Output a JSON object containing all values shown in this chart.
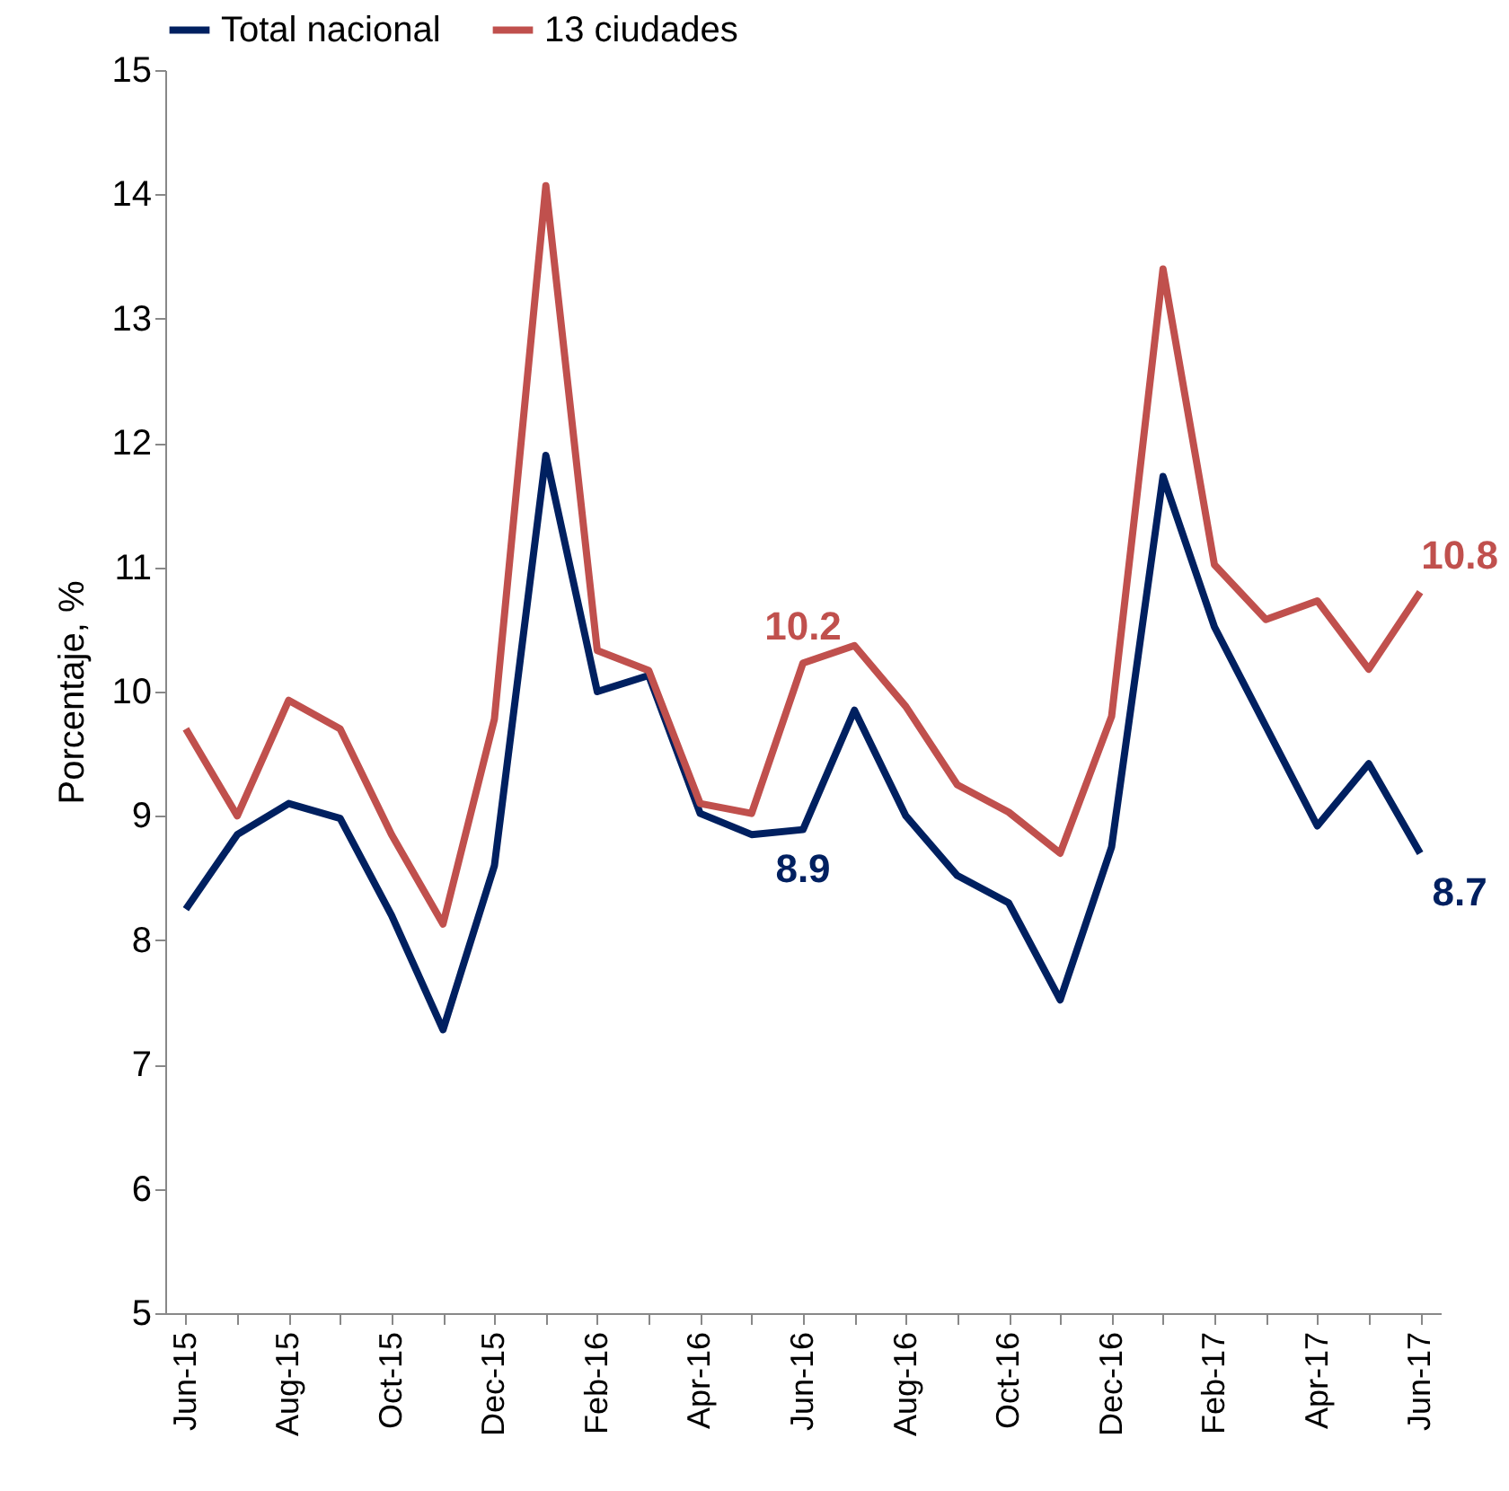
{
  "chart_data": {
    "type": "line",
    "ylabel": "Porcentaje, %",
    "legend": "top",
    "categories": [
      "Jun-15",
      null,
      "Aug-15",
      null,
      "Oct-15",
      null,
      "Dec-15",
      null,
      "Feb-16",
      null,
      "Apr-16",
      null,
      "Jun-16",
      null,
      "Aug-16",
      null,
      "Oct-16",
      null,
      "Dec-16",
      null,
      "Feb-17",
      null,
      "Apr-17",
      null,
      "Jun-17"
    ],
    "ylim": [
      5,
      15
    ],
    "yticks": [
      5,
      6,
      7,
      8,
      9,
      10,
      11,
      12,
      13,
      14,
      15
    ],
    "series": [
      {
        "name": "Total nacional",
        "color": "#002060",
        "values": [
          8.25,
          8.85,
          9.1,
          8.98,
          8.2,
          7.28,
          8.6,
          11.9,
          10.0,
          10.13,
          9.02,
          8.85,
          8.89,
          9.85,
          9.0,
          8.52,
          8.3,
          7.52,
          8.75,
          11.73,
          10.52,
          9.72,
          8.92,
          9.42,
          8.7
        ],
        "value_labels": [
          null,
          null,
          null,
          null,
          null,
          null,
          null,
          null,
          null,
          null,
          null,
          null,
          "8.9",
          null,
          null,
          null,
          null,
          null,
          null,
          null,
          null,
          null,
          null,
          null,
          "8.7"
        ]
      },
      {
        "name": "13 ciudades",
        "color": "#c0504d",
        "values": [
          9.7,
          9.0,
          9.93,
          9.7,
          8.85,
          8.13,
          9.78,
          14.07,
          10.33,
          10.17,
          9.1,
          9.02,
          10.23,
          10.37,
          9.88,
          9.25,
          9.03,
          8.7,
          9.8,
          13.4,
          11.02,
          10.58,
          10.73,
          10.18,
          10.8
        ],
        "value_labels": [
          null,
          null,
          null,
          null,
          null,
          null,
          null,
          null,
          null,
          null,
          null,
          null,
          "10.2",
          null,
          null,
          null,
          null,
          null,
          null,
          null,
          null,
          null,
          null,
          null,
          "10.8"
        ]
      }
    ]
  }
}
